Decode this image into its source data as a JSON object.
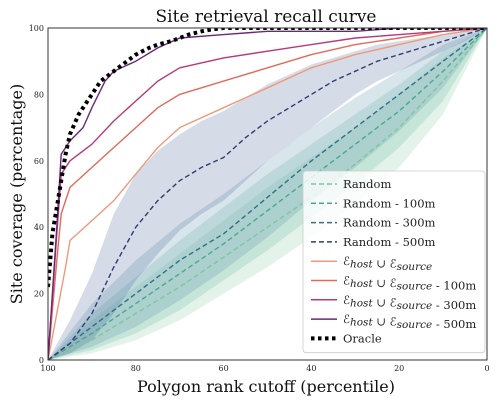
{
  "chart_data": {
    "type": "line",
    "title": "Site retrieval recall curve",
    "xlabel": "Polygon rank cutoff (percentile)",
    "ylabel": "Site coverage (percentage)",
    "xlim": [
      100,
      0
    ],
    "ylim": [
      0,
      100
    ],
    "x_ticks": [
      100,
      80,
      60,
      40,
      20,
      0
    ],
    "y_ticks": [
      0,
      20,
      40,
      60,
      80,
      100
    ],
    "grid": false,
    "legend_position": "lower right",
    "series": [
      {
        "name": "Random",
        "color": "#7fc79a",
        "style": "dashed",
        "band_color": "#7fc79a",
        "x": [
          100,
          90,
          80,
          70,
          60,
          50,
          40,
          30,
          20,
          10,
          0
        ],
        "y": [
          0,
          6,
          14,
          22,
          31,
          40,
          49,
          59,
          70,
          84,
          100
        ],
        "band_lower": [
          0,
          2,
          6,
          12,
          20,
          28,
          37,
          47,
          58,
          74,
          100
        ],
        "band_upper": [
          0,
          12,
          22,
          32,
          42,
          52,
          61,
          70,
          80,
          91,
          100
        ]
      },
      {
        "name": "Random - 100m",
        "color": "#4aa891",
        "style": "dashed",
        "band_color": "#5fb8a0",
        "x": [
          100,
          90,
          80,
          70,
          60,
          50,
          40,
          30,
          20,
          10,
          0
        ],
        "y": [
          0,
          8,
          17,
          26,
          35,
          45,
          55,
          65,
          75,
          87,
          100
        ],
        "band_lower": [
          0,
          3,
          8,
          15,
          24,
          33,
          43,
          53,
          64,
          78,
          100
        ],
        "band_upper": [
          0,
          14,
          25,
          36,
          46,
          56,
          65,
          74,
          83,
          93,
          100
        ]
      },
      {
        "name": "Random - 300m",
        "color": "#2f6f8a",
        "style": "dashed",
        "band_color": "#4d87a6",
        "x": [
          100,
          90,
          80,
          70,
          60,
          50,
          40,
          30,
          20,
          10,
          0
        ],
        "y": [
          0,
          10,
          20,
          30,
          38,
          49,
          60,
          70,
          80,
          90,
          100
        ],
        "band_lower": [
          0,
          4,
          10,
          18,
          27,
          37,
          48,
          58,
          69,
          82,
          100
        ],
        "band_upper": [
          0,
          17,
          30,
          41,
          50,
          60,
          70,
          79,
          87,
          95,
          100
        ]
      },
      {
        "name": "Random - 500m",
        "color": "#2d3f70",
        "style": "dashed",
        "band_color": "#3f5e96",
        "x": [
          100,
          95,
          90,
          85,
          80,
          75,
          70,
          65,
          60,
          55,
          50,
          45,
          40,
          35,
          30,
          25,
          20,
          15,
          10,
          5,
          0
        ],
        "y": [
          0,
          5,
          14,
          28,
          40,
          48,
          54,
          58,
          61,
          67,
          72,
          76,
          80,
          84,
          87,
          90,
          92,
          94,
          96,
          98,
          100
        ],
        "band_lower": [
          0,
          2,
          6,
          14,
          24,
          32,
          39,
          44,
          48,
          54,
          60,
          65,
          70,
          75,
          80,
          84,
          87,
          90,
          93,
          96,
          100
        ],
        "band_upper": [
          0,
          12,
          26,
          44,
          56,
          63,
          68,
          72,
          75,
          79,
          83,
          86,
          89,
          91,
          93,
          95,
          96,
          97,
          98,
          99,
          100
        ]
      },
      {
        "name": "ℰhost ∪ ℰsource",
        "color": "#f0997a",
        "style": "solid",
        "x": [
          100,
          98,
          96,
          95,
          90,
          85,
          80,
          75,
          70,
          60,
          50,
          40,
          30,
          20,
          10,
          0
        ],
        "y": [
          0,
          14,
          28,
          36,
          42,
          48,
          56,
          64,
          70,
          76,
          82,
          88,
          92,
          95,
          98,
          100
        ]
      },
      {
        "name": "ℰhost ∪ ℰsource - 100m",
        "color": "#e26a5a",
        "style": "solid",
        "x": [
          100,
          98,
          97,
          95,
          90,
          85,
          80,
          75,
          70,
          60,
          50,
          40,
          30,
          20,
          10,
          0
        ],
        "y": [
          0,
          30,
          44,
          52,
          58,
          64,
          70,
          76,
          80,
          84,
          88,
          92,
          95,
          97,
          99,
          100
        ]
      },
      {
        "name": "ℰhost ∪ ℰsource - 300m",
        "color": "#b8397a",
        "style": "solid",
        "x": [
          100,
          98,
          97,
          95,
          90,
          85,
          80,
          75,
          70,
          60,
          50,
          40,
          30,
          20,
          10,
          0
        ],
        "y": [
          0,
          38,
          56,
          60,
          65,
          72,
          78,
          84,
          88,
          91,
          93,
          95,
          97,
          98,
          99,
          100
        ]
      },
      {
        "name": "ℰhost ∪ ℰsource - 500m",
        "color": "#6a2877",
        "style": "solid",
        "x": [
          100,
          98,
          97,
          95,
          92,
          90,
          87,
          85,
          80,
          75,
          70,
          60,
          50,
          40,
          30,
          20,
          10,
          0
        ],
        "y": [
          0,
          40,
          62,
          66,
          70,
          76,
          84,
          87,
          90,
          94,
          97,
          98,
          99,
          99,
          99,
          100,
          100,
          100
        ]
      },
      {
        "name": "Oracle",
        "color": "#000000",
        "style": "dotted",
        "x": [
          100,
          99.5,
          99,
          98,
          97,
          96,
          95,
          93,
          90,
          88,
          85,
          82,
          80,
          77,
          75,
          72,
          70,
          68,
          65,
          63,
          60,
          0
        ],
        "y": [
          22,
          30,
          38,
          46,
          54,
          62,
          68,
          74,
          80,
          84,
          87,
          90,
          92,
          94,
          95,
          96,
          97,
          98,
          99,
          99.5,
          100,
          100
        ]
      }
    ]
  }
}
